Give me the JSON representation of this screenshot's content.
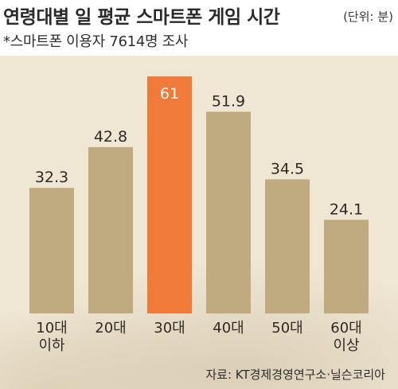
{
  "header": {
    "title": "연령대별 일 평균 스마트폰 게임 시간",
    "unit": "(단위: 분)",
    "subtitle": "*스마트폰 이용자 7614명 조사"
  },
  "source": "자료: KT경제경영연구소·닐슨코리아",
  "colors": {
    "bar": "#c0aa80",
    "highlight": "#f07a3a",
    "highlight_label": "#ffffff",
    "label": "#2f2a24"
  },
  "chart_data": {
    "type": "bar",
    "title": "연령대별 일 평균 스마트폰 게임 시간",
    "categories": [
      "10대\n이하",
      "20대",
      "30대",
      "40대",
      "50대",
      "60대\n이상"
    ],
    "values": [
      32.3,
      42.8,
      61,
      51.9,
      34.5,
      24.1
    ],
    "value_labels": [
      "32.3",
      "42.8",
      "61",
      "51.9",
      "34.5",
      "24.1"
    ],
    "highlight_index": 2,
    "ylim": [
      0,
      61
    ],
    "grid": false,
    "legend": "none"
  }
}
